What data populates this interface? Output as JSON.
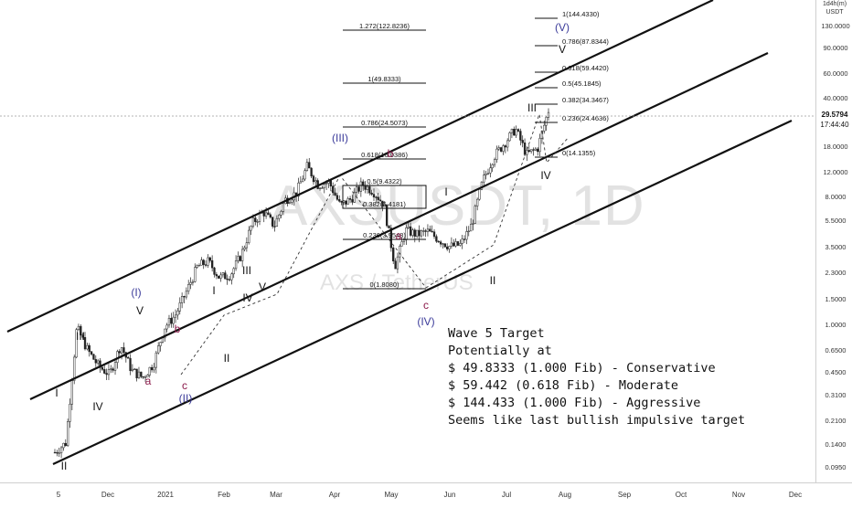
{
  "chart_data": {
    "type": "candlestick",
    "symbol": "AXSUSDT, 1D",
    "symbol_sub": "AXS / TetherUS",
    "scale": "log",
    "axis_header": [
      "1d4h(m)",
      "USDT"
    ],
    "last_price": "29.5794",
    "countdown": "17:44:40",
    "price_ticks": [
      "130.0000",
      "90.0000",
      "60.0000",
      "40.0000",
      "18.0000",
      "12.0000",
      "8.0000",
      "5.5000",
      "3.5000",
      "2.3000",
      "1.5000",
      "1.0000",
      "0.6500",
      "0.4500",
      "0.3100",
      "0.2100",
      "0.1400",
      "0.0950"
    ],
    "time_ticks": [
      "5",
      "Dec",
      "2021",
      "Feb",
      "Mar",
      "Apr",
      "May",
      "Jun",
      "Jul",
      "Aug",
      "Sep",
      "Oct",
      "Nov",
      "Dec"
    ],
    "fib_levels": [
      {
        "label": "1(144.4330)"
      },
      {
        "label": "0.786(87.8344)"
      },
      {
        "label": "0.618(59.4420)"
      },
      {
        "label": "0.5(45.1845)"
      },
      {
        "label": "0.382(34.3467)"
      },
      {
        "label": "0.236(24.4636)"
      },
      {
        "label": "0(14.1355)"
      },
      {
        "label": "1.272(122.8236)"
      },
      {
        "label": "1(49.8333)"
      },
      {
        "label": "0.786(24.5073)"
      },
      {
        "label": "0.618(16.0386)"
      },
      {
        "label": "0.5(9.4322)"
      },
      {
        "label": "0.382(6.4181)"
      },
      {
        "label": "0.236(3.9548)"
      },
      {
        "label": "0(1.8080)"
      }
    ],
    "wave_labels": [
      {
        "text": "I",
        "color": "#111111"
      },
      {
        "text": "II",
        "color": "#111111"
      },
      {
        "text": "III",
        "color": "#111111"
      },
      {
        "text": "IV",
        "color": "#111111"
      },
      {
        "text": "V",
        "color": "#111111"
      },
      {
        "text": "(I)",
        "color": "#3b3b9a"
      },
      {
        "text": "a",
        "color": "#8b1a4a"
      },
      {
        "text": "b",
        "color": "#8b1a4a"
      },
      {
        "text": "c",
        "color": "#8b1a4a"
      },
      {
        "text": "(II)",
        "color": "#3b3b9a"
      },
      {
        "text": "I",
        "color": "#111111"
      },
      {
        "text": "II",
        "color": "#111111"
      },
      {
        "text": "III",
        "color": "#111111"
      },
      {
        "text": "IV",
        "color": "#111111"
      },
      {
        "text": "V",
        "color": "#111111"
      },
      {
        "text": "(III)",
        "color": "#3b3b9a"
      },
      {
        "text": "a",
        "color": "#8b1a4a"
      },
      {
        "text": "b",
        "color": "#8b1a4a"
      },
      {
        "text": "c",
        "color": "#8b1a4a"
      },
      {
        "text": "(IV)",
        "color": "#3b3b9a"
      },
      {
        "text": "I",
        "color": "#111111"
      },
      {
        "text": "II",
        "color": "#111111"
      },
      {
        "text": "III",
        "color": "#111111"
      },
      {
        "text": "IV",
        "color": "#111111"
      },
      {
        "text": "V",
        "color": "#111111"
      },
      {
        "text": "(V)",
        "color": "#3b3b9a"
      }
    ],
    "price_path": [
      0.12,
      0.14,
      0.9,
      0.62,
      0.48,
      0.42,
      0.68,
      0.45,
      0.4,
      0.5,
      0.9,
      1.1,
      1.6,
      2.4,
      2.6,
      2.0,
      2.1,
      2.9,
      4.8,
      5.8,
      4.6,
      7.0,
      7.8,
      12.0,
      8.9,
      9.3,
      6.4,
      7.1,
      9.0,
      8.1,
      6.5,
      2.4,
      4.3,
      4.0,
      4.2,
      3.7,
      3.3,
      3.4,
      4.7,
      9.5,
      14.0,
      17.5,
      22.0,
      14.5,
      16.0,
      29.5794
    ],
    "annotation": {
      "title": "Wave 5 Target",
      "lines": [
        "Potentially at",
        "$ 49.8333 (1.000 Fib) - Conservative",
        "$ 59.442 (0.618 Fib) - Moderate",
        "$ 144.433 (1.000 Fib) - Aggressive",
        "Seems like last bullish impulsive target"
      ]
    }
  }
}
